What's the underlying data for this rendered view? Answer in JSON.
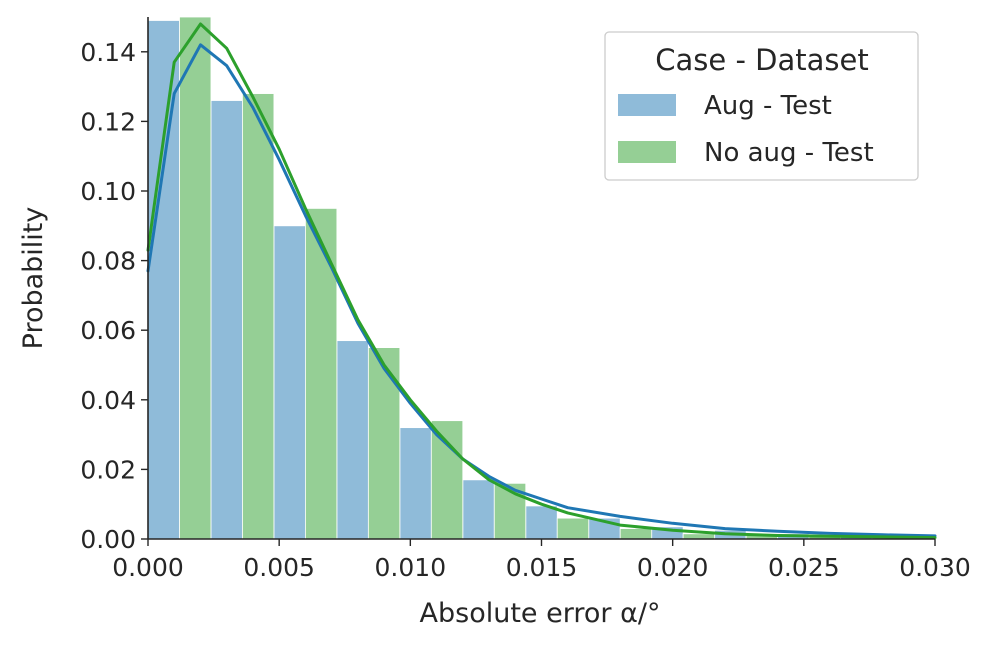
{
  "chart_data": {
    "type": "bar",
    "xlabel": "Absolute error α/°",
    "ylabel": "Probability",
    "xlim": [
      0,
      0.03
    ],
    "ylim": [
      0,
      0.15
    ],
    "x_ticks": [
      "0.000",
      "0.005",
      "0.010",
      "0.015",
      "0.020",
      "0.025",
      "0.030"
    ],
    "y_ticks": [
      "0.00",
      "0.02",
      "0.04",
      "0.06",
      "0.08",
      "0.10",
      "0.12",
      "0.14"
    ],
    "grid": false,
    "legend": {
      "title": "Case - Dataset",
      "placement": "top-right"
    },
    "series": [
      {
        "name": "Aug - Test",
        "color": "#1f77b4",
        "bars": [
          {
            "x0": 0.0,
            "x1": 0.0012,
            "y": 0.149
          },
          {
            "x0": 0.0024,
            "x1": 0.0036,
            "y": 0.126
          },
          {
            "x0": 0.0048,
            "x1": 0.006,
            "y": 0.09
          },
          {
            "x0": 0.0072,
            "x1": 0.0084,
            "y": 0.057
          },
          {
            "x0": 0.0096,
            "x1": 0.0108,
            "y": 0.032
          },
          {
            "x0": 0.012,
            "x1": 0.0132,
            "y": 0.017
          },
          {
            "x0": 0.0144,
            "x1": 0.0156,
            "y": 0.0095
          },
          {
            "x0": 0.0168,
            "x1": 0.018,
            "y": 0.006
          },
          {
            "x0": 0.0192,
            "x1": 0.0204,
            "y": 0.0035
          },
          {
            "x0": 0.0216,
            "x1": 0.0228,
            "y": 0.0025
          },
          {
            "x0": 0.024,
            "x1": 0.0252,
            "y": 0.0015
          },
          {
            "x0": 0.0264,
            "x1": 0.0276,
            "y": 0.0012
          },
          {
            "x0": 0.0288,
            "x1": 0.03,
            "y": 0.0008
          }
        ],
        "kde": [
          [
            0.0,
            0.077
          ],
          [
            0.001,
            0.128
          ],
          [
            0.002,
            0.142
          ],
          [
            0.003,
            0.136
          ],
          [
            0.004,
            0.124
          ],
          [
            0.005,
            0.109
          ],
          [
            0.006,
            0.093
          ],
          [
            0.007,
            0.078
          ],
          [
            0.008,
            0.062
          ],
          [
            0.009,
            0.049
          ],
          [
            0.01,
            0.039
          ],
          [
            0.011,
            0.03
          ],
          [
            0.012,
            0.023
          ],
          [
            0.013,
            0.018
          ],
          [
            0.014,
            0.014
          ],
          [
            0.015,
            0.0115
          ],
          [
            0.016,
            0.009
          ],
          [
            0.018,
            0.0065
          ],
          [
            0.02,
            0.0045
          ],
          [
            0.022,
            0.003
          ],
          [
            0.024,
            0.0022
          ],
          [
            0.026,
            0.0016
          ],
          [
            0.028,
            0.0012
          ],
          [
            0.03,
            0.0009
          ]
        ]
      },
      {
        "name": "No aug - Test",
        "color": "#2ca02c",
        "bars": [
          {
            "x0": 0.0012,
            "x1": 0.0024,
            "y": 0.15
          },
          {
            "x0": 0.0036,
            "x1": 0.0048,
            "y": 0.128
          },
          {
            "x0": 0.006,
            "x1": 0.0072,
            "y": 0.095
          },
          {
            "x0": 0.0084,
            "x1": 0.0096,
            "y": 0.055
          },
          {
            "x0": 0.0108,
            "x1": 0.012,
            "y": 0.034
          },
          {
            "x0": 0.0132,
            "x1": 0.0144,
            "y": 0.016
          },
          {
            "x0": 0.0156,
            "x1": 0.0168,
            "y": 0.006
          },
          {
            "x0": 0.018,
            "x1": 0.0192,
            "y": 0.003
          },
          {
            "x0": 0.0204,
            "x1": 0.0216,
            "y": 0.0015
          },
          {
            "x0": 0.0228,
            "x1": 0.024,
            "y": 0.001
          },
          {
            "x0": 0.0252,
            "x1": 0.0264,
            "y": 0.0007
          },
          {
            "x0": 0.0276,
            "x1": 0.0288,
            "y": 0.0005
          }
        ],
        "kde": [
          [
            0.0,
            0.083
          ],
          [
            0.001,
            0.137
          ],
          [
            0.002,
            0.148
          ],
          [
            0.003,
            0.141
          ],
          [
            0.004,
            0.127
          ],
          [
            0.005,
            0.112
          ],
          [
            0.006,
            0.095
          ],
          [
            0.007,
            0.079
          ],
          [
            0.008,
            0.063
          ],
          [
            0.009,
            0.05
          ],
          [
            0.01,
            0.04
          ],
          [
            0.011,
            0.031
          ],
          [
            0.012,
            0.023
          ],
          [
            0.013,
            0.017
          ],
          [
            0.014,
            0.013
          ],
          [
            0.015,
            0.01
          ],
          [
            0.016,
            0.0075
          ],
          [
            0.018,
            0.004
          ],
          [
            0.02,
            0.0025
          ],
          [
            0.022,
            0.0015
          ],
          [
            0.024,
            0.001
          ],
          [
            0.026,
            0.0008
          ],
          [
            0.028,
            0.0006
          ],
          [
            0.03,
            0.0004
          ]
        ]
      }
    ]
  }
}
